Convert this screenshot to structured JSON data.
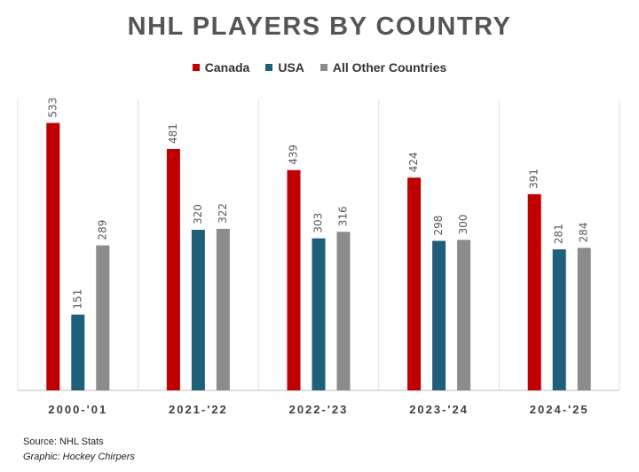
{
  "chart_data": {
    "type": "bar",
    "title": "NHL PLAYERS BY COUNTRY",
    "categories": [
      "2000-'01",
      "2021-'22",
      "2022-'23",
      "2023-'24",
      "2024-'25"
    ],
    "series": [
      {
        "name": "Canada",
        "color": "#c00000",
        "values": [
          533,
          481,
          439,
          424,
          391
        ]
      },
      {
        "name": "USA",
        "color": "#1f5f7a",
        "values": [
          151,
          320,
          303,
          298,
          281
        ]
      },
      {
        "name": "All Other Countries",
        "color": "#8c8c8c",
        "values": [
          289,
          322,
          316,
          300,
          284
        ]
      }
    ],
    "ylim": [
      0,
      580
    ],
    "grid": false,
    "legend_position": "top-center",
    "data_labels": true
  },
  "footer": {
    "source": "Source: NHL Stats",
    "credit": "Graphic: Hockey Chirpers"
  }
}
